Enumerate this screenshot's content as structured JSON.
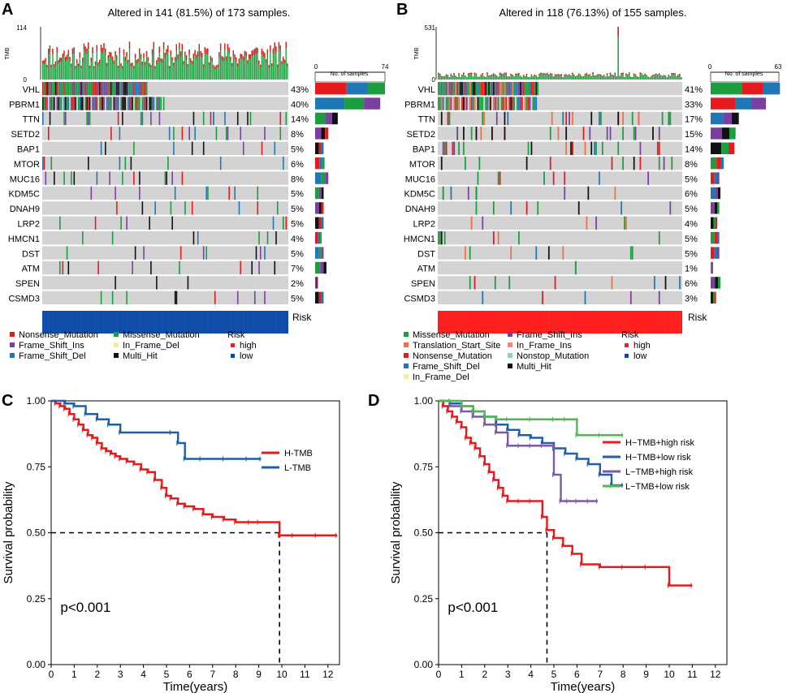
{
  "colors": {
    "Nonsense_Mutation": "#e41a1c",
    "Missense_Mutation": "#1b9e3e",
    "Frame_Shift_Ins": "#7b3fa0",
    "Frame_Shift_Del": "#1f78b4",
    "In_Frame_Del": "#f2ee9a",
    "In_Frame_Ins": "#f08a7a",
    "Translation_Start_Site": "#f46d43",
    "Nonstop_Mutation": "#8fd0c8",
    "Multi_Hit": "#111111",
    "bg": "#d3d3d3",
    "risk_high": "#ff1a1a",
    "risk_low": "#0b4aa8",
    "H_TMB": "#e41a1c",
    "L_TMB": "#1f5fa8",
    "HH": "#e41a1c",
    "HL": "#1f5fa8",
    "LH": "#7b5aa6",
    "LL": "#4cbb4c"
  },
  "panelA": {
    "letter": "A",
    "title": "Altered in 141 (81.5%) of 173 samples.",
    "tmb_label": "TMB",
    "tmb_max": "114",
    "tmb_min": "0",
    "nsample_label": "No. of samples",
    "nsample_min": "0",
    "nsample_max": "74",
    "risk_label": "Risk",
    "n_samples": 173,
    "genes": [
      {
        "name": "VHL",
        "pct": "43%"
      },
      {
        "name": "PBRM1",
        "pct": "40%"
      },
      {
        "name": "TTN",
        "pct": "14%"
      },
      {
        "name": "SETD2",
        "pct": "8%"
      },
      {
        "name": "BAP1",
        "pct": "5%"
      },
      {
        "name": "MTOR",
        "pct": "6%"
      },
      {
        "name": "MUC16",
        "pct": "8%"
      },
      {
        "name": "KDM5C",
        "pct": "5%"
      },
      {
        "name": "DNAH9",
        "pct": "5%"
      },
      {
        "name": "LRP2",
        "pct": "5%"
      },
      {
        "name": "HMCN1",
        "pct": "4%"
      },
      {
        "name": "DST",
        "pct": "5%"
      },
      {
        "name": "ATM",
        "pct": "7%"
      },
      {
        "name": "SPEN",
        "pct": "2%"
      },
      {
        "name": "CSMD3",
        "pct": "5%"
      }
    ],
    "legend": {
      "items": [
        "Nonsense_Mutation",
        "Missense_Mutation",
        "Frame_Shift_Ins",
        "In_Frame_Del",
        "Frame_Shift_Del",
        "Multi_Hit"
      ],
      "risk_title": "Risk",
      "risk_items": [
        "high",
        "low"
      ]
    }
  },
  "panelB": {
    "letter": "B",
    "title": "Altered in 118 (76.13%) of 155 samples.",
    "tmb_label": "TMB",
    "tmb_max": "531",
    "tmb_min": "0",
    "nsample_label": "No. of samples",
    "nsample_min": "0",
    "nsample_max": "63",
    "risk_label": "Risk",
    "n_samples": 155,
    "genes": [
      {
        "name": "VHL",
        "pct": "41%"
      },
      {
        "name": "PBRM1",
        "pct": "33%"
      },
      {
        "name": "TTN",
        "pct": "17%"
      },
      {
        "name": "SETD2",
        "pct": "15%"
      },
      {
        "name": "BAP1",
        "pct": "14%"
      },
      {
        "name": "MTOR",
        "pct": "8%"
      },
      {
        "name": "MUC16",
        "pct": "5%"
      },
      {
        "name": "KDM5C",
        "pct": "6%"
      },
      {
        "name": "DNAH9",
        "pct": "5%"
      },
      {
        "name": "LRP2",
        "pct": "4%"
      },
      {
        "name": "HMCN1",
        "pct": "5%"
      },
      {
        "name": "DST",
        "pct": "5%"
      },
      {
        "name": "ATM",
        "pct": "1%"
      },
      {
        "name": "SPEN",
        "pct": "6%"
      },
      {
        "name": "CSMD3",
        "pct": "3%"
      }
    ],
    "legend": {
      "items": [
        "Missense_Mutation",
        "Frame_Shift_Ins",
        "Translation_Start_Site",
        "In_Frame_Ins",
        "Nonsense_Mutation",
        "Nonstop_Mutation",
        "Frame_Shift_Del",
        "Multi_Hit",
        "In_Frame_Del"
      ],
      "risk_title": "Risk",
      "risk_items": [
        "high",
        "low"
      ]
    }
  },
  "chart_data": [
    {
      "type": "line",
      "panel": "C",
      "title": "",
      "xlabel": "Time(years)",
      "ylabel": "Survival probability",
      "xlim": [
        0,
        12.5
      ],
      "ylim": [
        0,
        1
      ],
      "xticks": [
        "0",
        "1",
        "2",
        "3",
        "4",
        "5",
        "6",
        "7",
        "8",
        "9",
        "10",
        "11",
        "12"
      ],
      "yticks": [
        "0.00",
        "0.25",
        "0.50",
        "0.75",
        "1.00"
      ],
      "annotation": "p<0.001",
      "median_line": {
        "x": 9.9,
        "y": 0.5
      },
      "series": [
        {
          "name": "H-TMB",
          "color": "#e41a1c",
          "x": [
            0,
            0.2,
            0.4,
            0.6,
            0.8,
            1.0,
            1.2,
            1.4,
            1.6,
            1.8,
            2.0,
            2.2,
            2.4,
            2.6,
            2.8,
            3.0,
            3.3,
            3.6,
            3.9,
            4.2,
            4.5,
            4.8,
            5.0,
            5.2,
            5.5,
            5.8,
            6.2,
            6.6,
            7.0,
            7.5,
            8.0,
            8.6,
            9.0,
            9.9,
            10.5,
            11.5,
            12.4
          ],
          "y": [
            1.0,
            0.99,
            0.98,
            0.97,
            0.95,
            0.93,
            0.91,
            0.89,
            0.87,
            0.86,
            0.84,
            0.82,
            0.81,
            0.8,
            0.79,
            0.78,
            0.77,
            0.76,
            0.74,
            0.73,
            0.7,
            0.67,
            0.64,
            0.63,
            0.61,
            0.6,
            0.59,
            0.57,
            0.56,
            0.55,
            0.54,
            0.54,
            0.54,
            0.49,
            0.49,
            0.49,
            0.49
          ]
        },
        {
          "name": "L-TMB",
          "color": "#1f5fa8",
          "x": [
            0,
            0.6,
            1.0,
            1.5,
            2.0,
            2.5,
            3.0,
            5.2,
            5.5,
            5.8,
            6.5,
            7.5,
            8.5,
            9.1
          ],
          "y": [
            1.0,
            0.99,
            0.98,
            0.95,
            0.93,
            0.91,
            0.88,
            0.88,
            0.84,
            0.78,
            0.78,
            0.78,
            0.78,
            0.78
          ]
        }
      ]
    },
    {
      "type": "line",
      "panel": "D",
      "title": "",
      "xlabel": "Time(years)",
      "ylabel": "Survival probability",
      "xlim": [
        0,
        12.5
      ],
      "ylim": [
        0,
        1
      ],
      "xticks": [
        "0",
        "1",
        "2",
        "3",
        "4",
        "5",
        "6",
        "7",
        "8",
        "9",
        "10",
        "11",
        "12"
      ],
      "yticks": [
        "0.00",
        "0.25",
        "0.50",
        "0.75",
        "1.00"
      ],
      "annotation": "p<0.001",
      "median_line": {
        "x": 4.7,
        "y": 0.5
      },
      "series": [
        {
          "name": "H−TMB+high risk",
          "color": "#e41a1c",
          "x": [
            0,
            0.2,
            0.4,
            0.6,
            0.8,
            1.0,
            1.2,
            1.4,
            1.6,
            1.8,
            2.0,
            2.2,
            2.4,
            2.6,
            2.8,
            3.0,
            3.5,
            4.0,
            4.5,
            4.7,
            5.0,
            5.4,
            5.8,
            6.2,
            7.0,
            8.0,
            9.0,
            10.0,
            11.0
          ],
          "y": [
            1.0,
            0.98,
            0.96,
            0.94,
            0.92,
            0.9,
            0.86,
            0.84,
            0.82,
            0.79,
            0.76,
            0.73,
            0.7,
            0.67,
            0.64,
            0.62,
            0.62,
            0.62,
            0.56,
            0.51,
            0.48,
            0.45,
            0.42,
            0.38,
            0.37,
            0.37,
            0.37,
            0.3,
            0.3
          ]
        },
        {
          "name": "H−TMB+low risk",
          "color": "#1f5fa8",
          "x": [
            0,
            0.5,
            1.0,
            1.5,
            2.0,
            2.5,
            3.0,
            3.5,
            4.0,
            4.5,
            5.0,
            5.5,
            6.0,
            6.5,
            7.0,
            7.5,
            8.0
          ],
          "y": [
            1.0,
            0.99,
            0.98,
            0.96,
            0.94,
            0.91,
            0.89,
            0.87,
            0.86,
            0.84,
            0.82,
            0.8,
            0.78,
            0.76,
            0.72,
            0.68,
            0.68
          ]
        },
        {
          "name": "L−TMB+high risk",
          "color": "#7b5aa6",
          "x": [
            0,
            0.5,
            1.0,
            1.5,
            2.0,
            2.5,
            3.0,
            3.5,
            4.0,
            4.5,
            5.0,
            5.3,
            5.6,
            6.0,
            6.5,
            6.9
          ],
          "y": [
            1.0,
            0.98,
            0.96,
            0.94,
            0.91,
            0.88,
            0.83,
            0.83,
            0.83,
            0.83,
            0.72,
            0.62,
            0.62,
            0.62,
            0.62,
            0.62
          ]
        },
        {
          "name": "L−TMB+low risk",
          "color": "#4cbb4c",
          "x": [
            0,
            0.5,
            1.0,
            1.5,
            2.0,
            2.5,
            3.0,
            4.0,
            5.0,
            5.5,
            6.0,
            7.0,
            8.0
          ],
          "y": [
            1.0,
            1.0,
            0.98,
            0.96,
            0.94,
            0.93,
            0.93,
            0.93,
            0.93,
            0.93,
            0.87,
            0.87,
            0.87
          ]
        }
      ]
    }
  ]
}
